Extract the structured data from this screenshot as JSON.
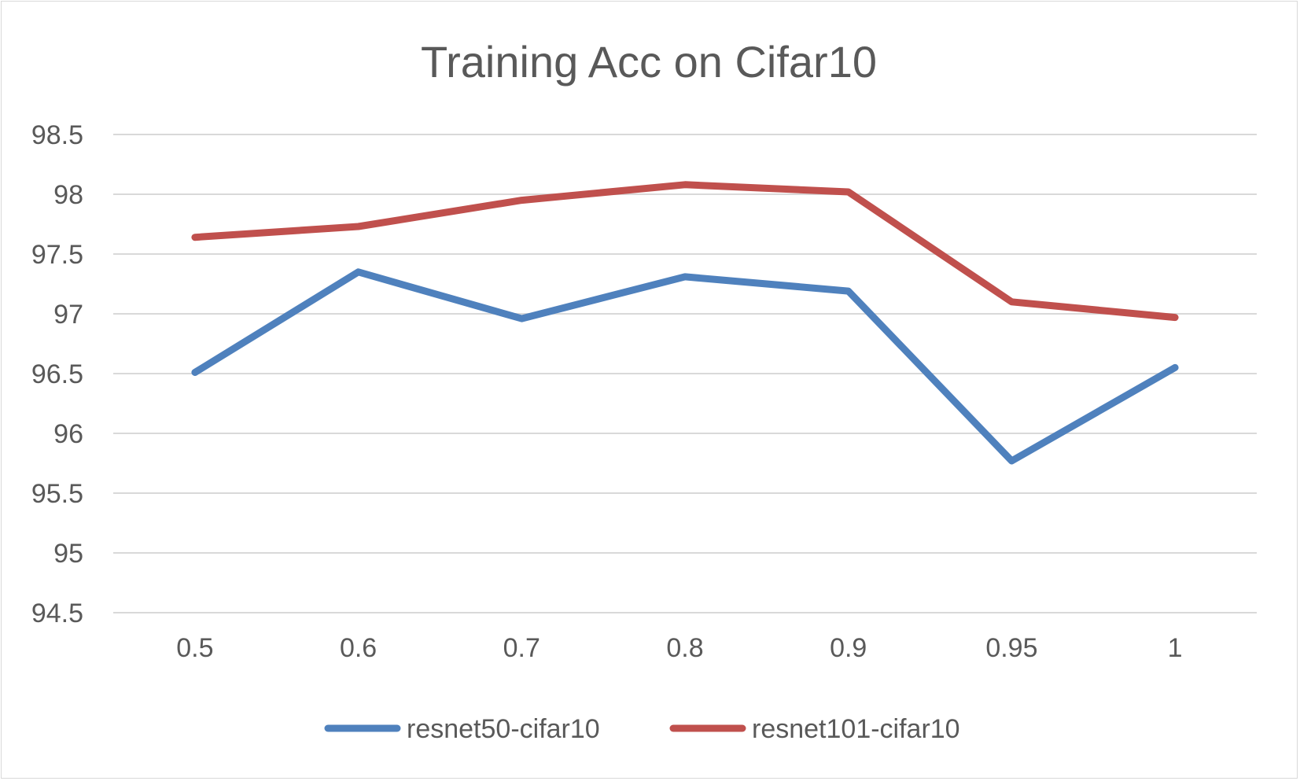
{
  "chart_data": {
    "type": "line",
    "title": "Training Acc on Cifar10",
    "xlabel": "",
    "ylabel": "",
    "categories": [
      "0.5",
      "0.6",
      "0.7",
      "0.8",
      "0.9",
      "0.95",
      "1"
    ],
    "ylim": [
      94.5,
      98.5
    ],
    "yticks": [
      "94.5",
      "95",
      "95.5",
      "96",
      "96.5",
      "97",
      "97.5",
      "98",
      "98.5"
    ],
    "grid": "horizontal",
    "legend_position": "bottom",
    "series": [
      {
        "name": "resnet50-cifar10",
        "color": "#4f81bd",
        "values": [
          96.51,
          97.35,
          96.96,
          97.31,
          97.19,
          95.77,
          96.55
        ]
      },
      {
        "name": "resnet101-cifar10",
        "color": "#c0504d",
        "values": [
          97.64,
          97.73,
          97.95,
          98.08,
          98.02,
          97.1,
          96.97
        ]
      }
    ]
  }
}
